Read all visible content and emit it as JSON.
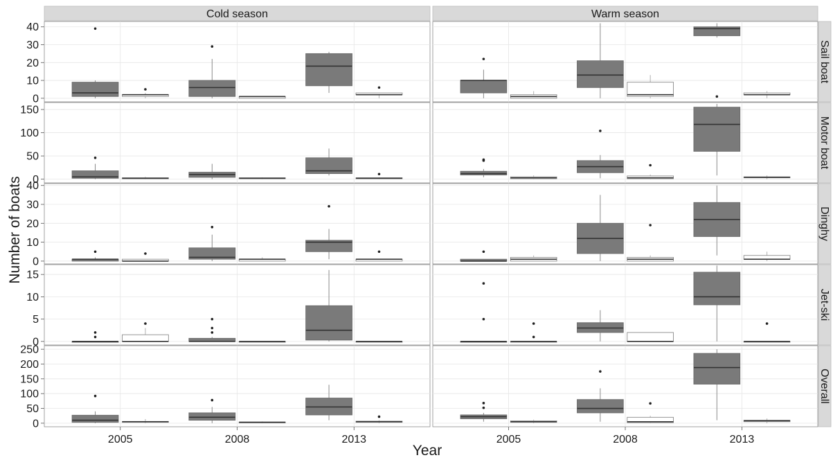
{
  "chart_data": {
    "type": "boxplot",
    "xlabel": "Year",
    "ylabel": "Number of boats",
    "years": [
      "2005",
      "2008",
      "2013"
    ],
    "columns": [
      "Cold season",
      "Warm season"
    ],
    "colors": {
      "dark_box": "#7a7a7a",
      "light_box": "#ffffff",
      "strip": "#d9d9d9",
      "grid": "#e6e6e6",
      "median": "#333333"
    },
    "legend": "none",
    "rows": [
      {
        "name": "Sail boat",
        "ylim": [
          -2,
          43
        ],
        "ticks": [
          "0",
          "10",
          "20",
          "30",
          "40"
        ],
        "tick_values": [
          0,
          10,
          20,
          30,
          40
        ],
        "panels": {
          "Cold season": [
            {
              "year": "2005",
              "dark": {
                "min": 0,
                "q1": 1,
                "median": 3,
                "q3": 9,
                "max": 10,
                "outliers": [
                  39
                ]
              },
              "light": {
                "min": 0,
                "q1": 1,
                "median": 2,
                "q3": 2,
                "max": 3,
                "outliers": [
                  5
                ]
              }
            },
            {
              "year": "2008",
              "dark": {
                "min": 0,
                "q1": 1,
                "median": 6,
                "q3": 10,
                "max": 22,
                "outliers": [
                  29
                ]
              },
              "light": {
                "min": 0,
                "q1": 0,
                "median": 1,
                "q3": 1,
                "max": 1,
                "outliers": []
              }
            },
            {
              "year": "2013",
              "dark": {
                "min": 3,
                "q1": 7,
                "median": 18,
                "q3": 25,
                "max": 26,
                "outliers": []
              },
              "light": {
                "min": 0,
                "q1": 2,
                "median": 2,
                "q3": 3,
                "max": 3,
                "outliers": [
                  6
                ]
              }
            }
          ],
          "Warm season": [
            {
              "year": "2005",
              "dark": {
                "min": 0,
                "q1": 3,
                "median": 10,
                "q3": 10,
                "max": 16,
                "outliers": [
                  22
                ]
              },
              "light": {
                "min": 0,
                "q1": 0,
                "median": 1,
                "q3": 2,
                "max": 4,
                "outliers": []
              }
            },
            {
              "year": "2008",
              "dark": {
                "min": 0,
                "q1": 6,
                "median": 13,
                "q3": 21,
                "max": 42,
                "outliers": []
              },
              "light": {
                "min": 0,
                "q1": 1,
                "median": 2,
                "q3": 9,
                "max": 13,
                "outliers": []
              }
            },
            {
              "year": "2013",
              "dark": {
                "min": 34,
                "q1": 35,
                "median": 39,
                "q3": 40,
                "max": 42,
                "outliers": [
                  1
                ]
              },
              "light": {
                "min": 0,
                "q1": 2,
                "median": 2,
                "q3": 3,
                "max": 4,
                "outliers": []
              }
            }
          ]
        }
      },
      {
        "name": "Motor boat",
        "ylim": [
          -8,
          165
        ],
        "ticks": [
          "0",
          "50",
          "100",
          "150"
        ],
        "tick_values": [
          0,
          50,
          100,
          150
        ],
        "panels": {
          "Cold season": [
            {
              "year": "2005",
              "dark": {
                "min": 0,
                "q1": 2,
                "median": 5,
                "q3": 18,
                "max": 33,
                "outliers": [
                  46
                ]
              },
              "light": {
                "min": 0,
                "q1": 1,
                "median": 2,
                "q3": 3,
                "max": 5,
                "outliers": []
              }
            },
            {
              "year": "2008",
              "dark": {
                "min": 0,
                "q1": 4,
                "median": 10,
                "q3": 15,
                "max": 33,
                "outliers": []
              },
              "light": {
                "min": 0,
                "q1": 1,
                "median": 2,
                "q3": 3,
                "max": 4,
                "outliers": []
              }
            },
            {
              "year": "2013",
              "dark": {
                "min": 8,
                "q1": 12,
                "median": 18,
                "q3": 46,
                "max": 66,
                "outliers": []
              },
              "light": {
                "min": 0,
                "q1": 1,
                "median": 2,
                "q3": 3,
                "max": 4,
                "outliers": [
                  11
                ]
              }
            }
          ],
          "Warm season": [
            {
              "year": "2005",
              "dark": {
                "min": 4,
                "q1": 9,
                "median": 12,
                "q3": 17,
                "max": 22,
                "outliers": [
                  40,
                  42
                ]
              },
              "light": {
                "min": 0,
                "q1": 1,
                "median": 3,
                "q3": 5,
                "max": 8,
                "outliers": []
              }
            },
            {
              "year": "2008",
              "dark": {
                "min": 2,
                "q1": 14,
                "median": 27,
                "q3": 40,
                "max": 52,
                "outliers": [
                  104
                ]
              },
              "light": {
                "min": 0,
                "q1": 1,
                "median": 3,
                "q3": 7,
                "max": 10,
                "outliers": [
                  30
                ]
              }
            },
            {
              "year": "2013",
              "dark": {
                "min": 8,
                "q1": 60,
                "median": 118,
                "q3": 155,
                "max": 162,
                "outliers": []
              },
              "light": {
                "min": 0,
                "q1": 3,
                "median": 4,
                "q3": 5,
                "max": 8,
                "outliers": []
              }
            }
          ]
        }
      },
      {
        "name": "Dinghy",
        "ylim": [
          -1.5,
          41
        ],
        "ticks": [
          "0",
          "10",
          "20",
          "30",
          "40"
        ],
        "tick_values": [
          0,
          10,
          20,
          30,
          40
        ],
        "panels": {
          "Cold season": [
            {
              "year": "2005",
              "dark": {
                "min": 0,
                "q1": 0,
                "median": 1,
                "q3": 1,
                "max": 2,
                "outliers": [
                  5
                ]
              },
              "light": {
                "min": 0,
                "q1": 0,
                "median": 0,
                "q3": 1,
                "max": 1,
                "outliers": [
                  4
                ]
              }
            },
            {
              "year": "2008",
              "dark": {
                "min": 0,
                "q1": 1,
                "median": 2,
                "q3": 7,
                "max": 14,
                "outliers": [
                  18
                ]
              },
              "light": {
                "min": 0,
                "q1": 0,
                "median": 1,
                "q3": 1,
                "max": 2,
                "outliers": []
              }
            },
            {
              "year": "2013",
              "dark": {
                "min": 1,
                "q1": 5,
                "median": 10,
                "q3": 11,
                "max": 17,
                "outliers": [
                  29
                ]
              },
              "light": {
                "min": 0,
                "q1": 0,
                "median": 1,
                "q3": 1,
                "max": 1,
                "outliers": [
                  5
                ]
              }
            }
          ],
          "Warm season": [
            {
              "year": "2005",
              "dark": {
                "min": 0,
                "q1": 0,
                "median": 0,
                "q3": 1,
                "max": 1,
                "outliers": [
                  5
                ]
              },
              "light": {
                "min": 0,
                "q1": 0,
                "median": 1,
                "q3": 2,
                "max": 3,
                "outliers": []
              }
            },
            {
              "year": "2008",
              "dark": {
                "min": 0,
                "q1": 4,
                "median": 12,
                "q3": 20,
                "max": 35,
                "outliers": []
              },
              "light": {
                "min": 0,
                "q1": 0,
                "median": 1,
                "q3": 2,
                "max": 3,
                "outliers": [
                  19
                ]
              }
            },
            {
              "year": "2013",
              "dark": {
                "min": 3,
                "q1": 13,
                "median": 22,
                "q3": 31,
                "max": 40,
                "outliers": []
              },
              "light": {
                "min": 0,
                "q1": 1,
                "median": 1,
                "q3": 3,
                "max": 5,
                "outliers": []
              }
            }
          ]
        }
      },
      {
        "name": "Jet-ski",
        "ylim": [
          -0.8,
          17.2
        ],
        "ticks": [
          "0",
          "5",
          "10",
          "15"
        ],
        "tick_values": [
          0,
          5,
          10,
          15
        ],
        "panels": {
          "Cold season": [
            {
              "year": "2005",
              "dark": {
                "min": 0,
                "q1": 0,
                "median": 0,
                "q3": 0,
                "max": 0,
                "outliers": [
                  1,
                  2
                ]
              },
              "light": {
                "min": 0,
                "q1": 0,
                "median": 0,
                "q3": 1.5,
                "max": 3,
                "outliers": [
                  4
                ]
              }
            },
            {
              "year": "2008",
              "dark": {
                "min": 0,
                "q1": 0,
                "median": 0,
                "q3": 0.7,
                "max": 1,
                "outliers": [
                  2,
                  3,
                  5
                ]
              },
              "light": {
                "min": 0,
                "q1": 0,
                "median": 0,
                "q3": 0,
                "max": 0,
                "outliers": []
              }
            },
            {
              "year": "2013",
              "dark": {
                "min": 0,
                "q1": 0.3,
                "median": 2.5,
                "q3": 8,
                "max": 16,
                "outliers": []
              },
              "light": {
                "min": 0,
                "q1": 0,
                "median": 0,
                "q3": 0,
                "max": 0,
                "outliers": []
              }
            }
          ],
          "Warm season": [
            {
              "year": "2005",
              "dark": {
                "min": 0,
                "q1": 0,
                "median": 0,
                "q3": 0,
                "max": 0,
                "outliers": [
                  5,
                  13
                ]
              },
              "light": {
                "min": 0,
                "q1": 0,
                "median": 0,
                "q3": 0,
                "max": 0,
                "outliers": [
                  1,
                  4
                ]
              }
            },
            {
              "year": "2008",
              "dark": {
                "min": 0,
                "q1": 2,
                "median": 3,
                "q3": 4.2,
                "max": 7,
                "outliers": []
              },
              "light": {
                "min": 0,
                "q1": 0,
                "median": 0,
                "q3": 2,
                "max": 2,
                "outliers": []
              }
            },
            {
              "year": "2013",
              "dark": {
                "min": 0,
                "q1": 8.2,
                "median": 10,
                "q3": 15.5,
                "max": 17,
                "outliers": []
              },
              "light": {
                "min": 0,
                "q1": 0,
                "median": 0,
                "q3": 0,
                "max": 0,
                "outliers": [
                  4
                ]
              }
            }
          ]
        }
      },
      {
        "name": "Overall",
        "ylim": [
          -12,
          262
        ],
        "ticks": [
          "0",
          "50",
          "100",
          "150",
          "200",
          "250"
        ],
        "tick_values": [
          0,
          50,
          100,
          150,
          200,
          250
        ],
        "panels": {
          "Cold season": [
            {
              "year": "2005",
              "dark": {
                "min": 0,
                "q1": 3,
                "median": 10,
                "q3": 27,
                "max": 40,
                "outliers": [
                  92
                ]
              },
              "light": {
                "min": 0,
                "q1": 3,
                "median": 5,
                "q3": 6,
                "max": 14,
                "outliers": []
              }
            },
            {
              "year": "2008",
              "dark": {
                "min": 0,
                "q1": 10,
                "median": 20,
                "q3": 35,
                "max": 55,
                "outliers": [
                  78
                ]
              },
              "light": {
                "min": 0,
                "q1": 2,
                "median": 3,
                "q3": 4,
                "max": 6,
                "outliers": []
              }
            },
            {
              "year": "2013",
              "dark": {
                "min": 10,
                "q1": 28,
                "median": 55,
                "q3": 85,
                "max": 130,
                "outliers": []
              },
              "light": {
                "min": 0,
                "q1": 3,
                "median": 5,
                "q3": 7,
                "max": 10,
                "outliers": [
                  22
                ]
              }
            }
          ],
          "Warm season": [
            {
              "year": "2005",
              "dark": {
                "min": 5,
                "q1": 15,
                "median": 22,
                "q3": 28,
                "max": 35,
                "outliers": [
                  52,
                  68
                ]
              },
              "light": {
                "min": 0,
                "q1": 3,
                "median": 5,
                "q3": 8,
                "max": 12,
                "outliers": []
              }
            },
            {
              "year": "2008",
              "dark": {
                "min": 5,
                "q1": 35,
                "median": 50,
                "q3": 80,
                "max": 118,
                "outliers": [
                  175
                ]
              },
              "light": {
                "min": 0,
                "q1": 2,
                "median": 5,
                "q3": 20,
                "max": 25,
                "outliers": [
                  67
                ]
              }
            },
            {
              "year": "2013",
              "dark": {
                "min": 10,
                "q1": 132,
                "median": 188,
                "q3": 236,
                "max": 250,
                "outliers": []
              },
              "light": {
                "min": 0,
                "q1": 5,
                "median": 8,
                "q3": 10,
                "max": 16,
                "outliers": []
              }
            }
          ]
        }
      }
    ]
  }
}
